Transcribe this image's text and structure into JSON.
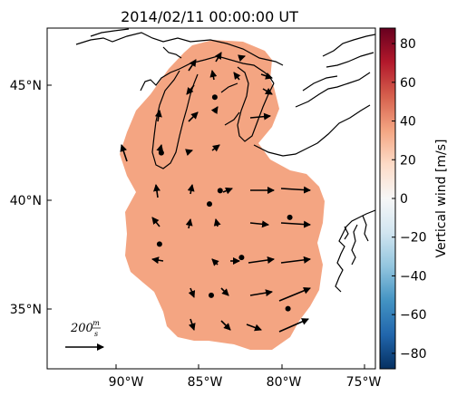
{
  "title": "2014/02/11 00:00:00 UT",
  "map": {
    "lat_ticks": [
      "35°N",
      "40°N",
      "45°N"
    ],
    "lon_ticks": [
      "90°W",
      "85°W",
      "80°W",
      "75°W"
    ],
    "lat_range": [
      32.3,
      47.6
    ],
    "lon_range": [
      -93.9,
      -75.5
    ],
    "field_color": "#f4a582",
    "coastline_color": "#000000"
  },
  "colorbar": {
    "label": "Vertical wind [m/s]",
    "ticks": [
      "80",
      "60",
      "40",
      "20",
      "0",
      "−20",
      "−40",
      "−60",
      "−80"
    ],
    "range": [
      -88,
      88
    ],
    "colormap": "RdBu_r",
    "colors": [
      "#053061",
      "#2166ac",
      "#4393c3",
      "#92c5de",
      "#d1e5f0",
      "#f7f7f7",
      "#fddbc7",
      "#f4a582",
      "#d6604d",
      "#b2182b",
      "#67001f"
    ]
  },
  "scale_arrow": {
    "value": "200",
    "unit_num": "m",
    "unit_den": "s"
  },
  "station_dots": [
    {
      "lon": -84.5,
      "lat": 44.5
    },
    {
      "lon": -87.5,
      "lat": 42.0
    },
    {
      "lon": -84.2,
      "lat": 40.3
    },
    {
      "lon": -84.8,
      "lat": 39.7
    },
    {
      "lon": -80.3,
      "lat": 39.1
    },
    {
      "lon": -87.6,
      "lat": 37.9
    },
    {
      "lon": -83.0,
      "lat": 37.3
    },
    {
      "lon": -84.7,
      "lat": 35.6
    },
    {
      "lon": -80.4,
      "lat": 35.0
    }
  ]
}
